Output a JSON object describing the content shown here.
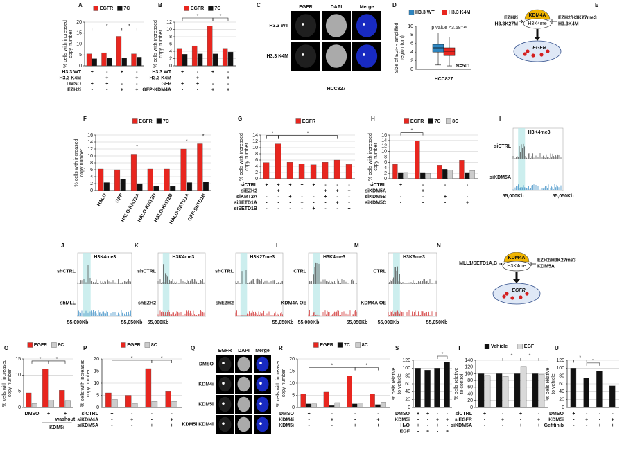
{
  "chart_data": [
    {
      "type": "bar",
      "label": "A",
      "ylabel": [
        "% cells with increased",
        "copy number"
      ],
      "ylim": [
        0,
        20
      ],
      "yticks": [
        0,
        5,
        10,
        15,
        20
      ],
      "grid": true,
      "series": [
        {
          "name": "EGFR",
          "color": "#e8261f",
          "values": [
            5.5,
            6,
            13.5,
            5.5
          ]
        },
        {
          "name": "7C",
          "color": "#111111",
          "values": [
            3.3,
            3.5,
            3.5,
            4
          ]
        }
      ],
      "rows": [
        {
          "label": "H3.3 WT",
          "marks": [
            "+",
            "-",
            "+",
            "-"
          ]
        },
        {
          "label": "H3.3 K4M",
          "marks": [
            "-",
            "+",
            "-",
            "+"
          ]
        },
        {
          "label": "DMSO",
          "marks": [
            "+",
            "+",
            "-",
            "-"
          ]
        },
        {
          "label": "EZH2i",
          "marks": [
            "-",
            "-",
            "+",
            "+"
          ]
        }
      ],
      "significance": [
        "*",
        "*"
      ]
    },
    {
      "type": "bar",
      "label": "B",
      "ylabel": [
        "% cells with increased",
        "copy number"
      ],
      "ylim": [
        0,
        12
      ],
      "yticks": [
        0,
        2,
        4,
        6,
        8,
        10,
        12
      ],
      "grid": true,
      "series": [
        {
          "name": "EGFR",
          "color": "#e8261f",
          "values": [
            4.8,
            5.5,
            11,
            4.8
          ]
        },
        {
          "name": "7C",
          "color": "#111111",
          "values": [
            3.2,
            3.3,
            3.3,
            3.8
          ]
        }
      ],
      "rows": [
        {
          "label": "H3.3 WT",
          "marks": [
            "+",
            "-",
            "+",
            "-"
          ]
        },
        {
          "label": "H3.3 K4M",
          "marks": [
            "-",
            "+",
            "-",
            "+"
          ]
        },
        {
          "label": "GFP",
          "marks": [
            "+",
            "+",
            "-",
            "-"
          ]
        },
        {
          "label": "GFP-KDM4A",
          "marks": [
            "-",
            "-",
            "+",
            "+"
          ]
        }
      ],
      "significance": [
        "*",
        "*"
      ]
    },
    {
      "type": "box",
      "label": "D",
      "ylabel": [
        "Size of EGFR amplified",
        "region (um)"
      ],
      "ylim": [
        0,
        10
      ],
      "yticks": [
        0,
        2,
        4,
        6,
        8,
        10
      ],
      "grid": false,
      "series": [
        {
          "name": "H3.3 WT",
          "color": "#2e86c1",
          "values": [
            1,
            4,
            5,
            5.8,
            8.5
          ]
        },
        {
          "name": "H3.3 K4M",
          "color": "#e8261f",
          "values": [
            0.8,
            3.2,
            4.2,
            5,
            7.5
          ]
        }
      ],
      "annotation": "p value <3.58⁻¹⁶",
      "n_label": "N=501",
      "xlabel": "HCC827"
    },
    {
      "type": "bar",
      "label": "F",
      "ylabel": [
        "% cells with increased",
        "copy number"
      ],
      "ylim": [
        0,
        16
      ],
      "yticks": [
        0,
        2,
        4,
        6,
        8,
        10,
        12,
        14,
        16
      ],
      "grid": true,
      "categories": [
        "HALO",
        "GFP",
        "HALO-KMT2A",
        "HALO-KMT2D",
        "HALO-KMT2B",
        "HALO-SETD1A",
        "GFP-SETD1B"
      ],
      "series": [
        {
          "name": "EGFR",
          "color": "#e8261f",
          "values": [
            6.2,
            6,
            10.5,
            6.2,
            6.2,
            12,
            13.5
          ]
        },
        {
          "name": "7C",
          "color": "#111111",
          "values": [
            2.3,
            3.3,
            2,
            1.2,
            1.2,
            2.3,
            2.5
          ]
        }
      ],
      "significance": [
        "*",
        "*",
        "*"
      ]
    },
    {
      "type": "bar",
      "label": "G",
      "ylabel": [
        "% cells with increased",
        "copy number"
      ],
      "ylim": [
        0,
        14
      ],
      "yticks": [
        0,
        2,
        4,
        6,
        8,
        10,
        12,
        14
      ],
      "grid": true,
      "series": [
        {
          "name": "EGFR",
          "color": "#e8261f",
          "values": [
            5.2,
            11.2,
            5.3,
            4.8,
            4.5,
            5.3,
            6,
            4.6
          ]
        }
      ],
      "rows": [
        {
          "label": "siCTRL",
          "marks": [
            "+",
            "+",
            "+",
            "+",
            "+",
            "-",
            "-",
            "-"
          ]
        },
        {
          "label": "siEZH2",
          "marks": [
            "-",
            "+",
            "-",
            "-",
            "-",
            "+",
            "+",
            "+"
          ]
        },
        {
          "label": "siKMT2A",
          "marks": [
            "-",
            "-",
            "+",
            "-",
            "-",
            "+",
            "-",
            "-"
          ]
        },
        {
          "label": "siSETD1A",
          "marks": [
            "-",
            "-",
            "-",
            "+",
            "-",
            "-",
            "+",
            "-"
          ]
        },
        {
          "label": "siSETD1B",
          "marks": [
            "-",
            "-",
            "-",
            "-",
            "+",
            "-",
            "-",
            "+"
          ]
        }
      ],
      "significance": [
        "*",
        "*"
      ]
    },
    {
      "type": "bar",
      "label": "H",
      "ylabel": [
        "% cells with increased",
        "copy number"
      ],
      "ylim": [
        0,
        16
      ],
      "yticks": [
        0,
        2,
        4,
        6,
        8,
        10,
        12,
        14,
        16
      ],
      "grid": true,
      "series": [
        {
          "name": "EGFR",
          "color": "#e8261f",
          "values": [
            5.3,
            13.8,
            5,
            6.8
          ]
        },
        {
          "name": "7C",
          "color": "#111111",
          "values": [
            2.3,
            2.3,
            3.5,
            2.3
          ]
        },
        {
          "name": "8C",
          "color": "#cccccc",
          "values": [
            2.3,
            2,
            3.2,
            3
          ]
        }
      ],
      "rows": [
        {
          "label": "siCTRL",
          "marks": [
            "+",
            "-",
            "-",
            "-"
          ]
        },
        {
          "label": "siKDM5A",
          "marks": [
            "-",
            "+",
            "-",
            "-"
          ]
        },
        {
          "label": "siKDM5B",
          "marks": [
            "-",
            "-",
            "+",
            "-"
          ]
        },
        {
          "label": "siKDM5C",
          "marks": [
            "-",
            "-",
            "-",
            "+"
          ]
        }
      ],
      "significance": [
        "*"
      ]
    },
    {
      "type": "bar",
      "label": "O",
      "ylabel": [
        "% cells with increased",
        "copy number"
      ],
      "ylim": [
        0,
        15
      ],
      "yticks": [
        0,
        5,
        10,
        15
      ],
      "grid": true,
      "categories": [
        "DMSO",
        "+",
        "+"
      ],
      "annotation": "washout",
      "xlabel": "KDM5i",
      "series": [
        {
          "name": "EGFR",
          "color": "#e8261f",
          "values": [
            4.5,
            11.8,
            5.3
          ]
        },
        {
          "name": "8C",
          "color": "#cccccc",
          "values": [
            1.2,
            2.3,
            2
          ]
        }
      ],
      "significance": [
        "*",
        "*"
      ]
    },
    {
      "type": "bar",
      "label": "P",
      "ylabel": [
        "% cells with increased",
        "copy number"
      ],
      "ylim": [
        0,
        20
      ],
      "yticks": [
        0,
        5,
        10,
        15,
        20
      ],
      "grid": true,
      "series": [
        {
          "name": "EGFR",
          "color": "#e8261f",
          "values": [
            6,
            5,
            16,
            6.5
          ]
        },
        {
          "name": "8C",
          "color": "#cccccc",
          "values": [
            3.3,
            1.7,
            2.5,
            2.5
          ]
        }
      ],
      "rows": [
        {
          "label": "siCTRL",
          "marks": [
            "+",
            "-",
            "-",
            "-"
          ]
        },
        {
          "label": "siKDM4A",
          "marks": [
            "-",
            "+",
            "-",
            "+"
          ]
        },
        {
          "label": "siKDM5A",
          "marks": [
            "-",
            "-",
            "+",
            "+"
          ]
        }
      ],
      "significance": [
        "*",
        "*"
      ]
    },
    {
      "type": "bar",
      "label": "R",
      "ylabel": [
        "% cells with increased",
        "copy number"
      ],
      "ylim": [
        0,
        20
      ],
      "yticks": [
        0,
        5,
        10,
        15,
        20
      ],
      "grid": true,
      "series": [
        {
          "name": "EGFR",
          "color": "#e8261f",
          "values": [
            5.5,
            6.3,
            13,
            5.5
          ]
        },
        {
          "name": "7C",
          "color": "#111111",
          "values": [
            1.5,
            0.8,
            1.5,
            1.2
          ]
        },
        {
          "name": "8C",
          "color": "#cccccc",
          "values": [
            1.5,
            2,
            1.8,
            2.2
          ]
        }
      ],
      "rows": [
        {
          "label": "DMSO",
          "marks": [
            "+",
            "-",
            "-",
            "-"
          ]
        },
        {
          "label": "KDM4i",
          "marks": [
            "-",
            "+",
            "-",
            "+"
          ]
        },
        {
          "label": "KDM5i",
          "marks": [
            "-",
            "-",
            "+",
            "+"
          ]
        }
      ],
      "significance": [
        "*",
        "*"
      ]
    },
    {
      "type": "bar",
      "label": "S",
      "ylabel": [
        "% cells relative",
        "to vehicle"
      ],
      "ylim": [
        0,
        120
      ],
      "yticks": [
        0,
        20,
        40,
        60,
        80,
        100,
        120
      ],
      "grid": true,
      "series": [
        {
          "name": "Vehicle",
          "color": "#111111",
          "values": [
            100,
            95,
            100,
            115
          ]
        }
      ],
      "legend": false,
      "rows": [
        {
          "label": "DMSO",
          "marks": [
            "+",
            "+",
            "-",
            "-"
          ]
        },
        {
          "label": "KDM5i",
          "marks": [
            "-",
            "-",
            "+",
            "+"
          ]
        },
        {
          "label": "H₂O",
          "marks": [
            "+",
            "-",
            "+",
            "-"
          ]
        },
        {
          "label": "EGF",
          "marks": [
            "-",
            "+",
            "-",
            "+"
          ]
        }
      ],
      "significance": [
        "*"
      ]
    },
    {
      "type": "bar",
      "label": "T",
      "ylabel": [
        "% cells relative",
        "to control"
      ],
      "ylim": [
        0,
        140
      ],
      "yticks": [
        0,
        20,
        40,
        60,
        80,
        100,
        120,
        140
      ],
      "grid": true,
      "series": [
        {
          "name": "Vehicle",
          "color": "#111111",
          "values": [
            100,
            100,
            100,
            100
          ]
        },
        {
          "name": "EGF",
          "color": "#d9d9d9",
          "values": [
            95,
            92,
            122,
            98
          ]
        }
      ],
      "rows": [
        {
          "label": "siCTRL",
          "marks": [
            "+",
            "-",
            "+",
            "-"
          ]
        },
        {
          "label": "siEGFR",
          "marks": [
            "-",
            "+",
            "-",
            "+"
          ]
        },
        {
          "label": "siKDM5A",
          "marks": [
            "-",
            "-",
            "+",
            "+"
          ]
        }
      ],
      "significance": [
        "*",
        "*"
      ]
    },
    {
      "type": "bar",
      "label": "U",
      "ylabel": [
        "% cells relative",
        "to vehicle"
      ],
      "ylim": [
        0,
        120
      ],
      "yticks": [
        0,
        20,
        40,
        60,
        80,
        100,
        120
      ],
      "grid": true,
      "series": [
        {
          "name": "Vehicle",
          "color": "#111111",
          "values": [
            100,
            75,
            92,
            55
          ]
        }
      ],
      "legend": false,
      "rows": [
        {
          "label": "DMSO",
          "marks": [
            "+",
            "-",
            "-",
            "-"
          ]
        },
        {
          "label": "KDM5i",
          "marks": [
            "-",
            "+",
            "-",
            "+"
          ]
        },
        {
          "label": "Gefitinib",
          "marks": [
            "-",
            "-",
            "+",
            "+"
          ]
        }
      ],
      "significance": [
        "*",
        "*"
      ]
    }
  ],
  "panels": {
    "C": {
      "label": "C",
      "columns": [
        "EGFR",
        "DAPI",
        "Merge"
      ],
      "rows": [
        "H3.3 WT",
        "H3.3 K4M"
      ],
      "caption": "HCC827"
    },
    "Q": {
      "label": "Q",
      "columns": [
        "EGFR",
        "DAPI",
        "Merge"
      ],
      "rows": [
        "DMSO",
        "KDM4i",
        "KDM5i",
        "KDM5i KDM4i"
      ]
    },
    "E": {
      "label": "E",
      "enzyme": "KDM4A",
      "mark": "H3K4me",
      "left": [
        "EZH2i",
        "H3.3K27M"
      ],
      "right": [
        "EZH2/H3K27me3",
        "H3.3K4M"
      ],
      "gene": "EGFR"
    },
    "N": {
      "label": "N",
      "enzyme": "KDM4A",
      "mark": "H3K4me",
      "left": [
        "MLL1/SETD1A,B"
      ],
      "right": [
        "EZH2/H3K27me3",
        "KDM5A"
      ],
      "gene": "EGFR"
    },
    "I": {
      "label": "I",
      "tracks": [
        {
          "mark": "H3K4me3",
          "samples": [
            "siCTRL",
            "siKDM5A"
          ]
        }
      ],
      "axis": [
        "55,000Kb",
        "55,050Kb"
      ]
    },
    "J": {
      "label": "J",
      "tracks": [
        {
          "mark": "H3K4me3",
          "samples": [
            "shCTRL",
            "shMLL"
          ]
        }
      ],
      "axis": [
        "55,000Kb",
        "55,050Kb"
      ]
    },
    "K": {
      "label": "K",
      "tracks": [
        {
          "mark": "H3K4me3",
          "samples": [
            "shCTRL",
            "shEZH2"
          ]
        },
        {
          "mark": "H3K27me3",
          "samples": [
            "shCTRL",
            "shEZH2"
          ]
        }
      ],
      "axis": [
        "55,000Kb",
        "55,050Kb"
      ]
    },
    "L": {
      "label": "L",
      "tracks": [
        {
          "mark": "H3K4me3",
          "samples": [
            "CTRL",
            "KDM4A OE"
          ]
        }
      ],
      "axis": [
        "55,000Kb",
        "55,050Kb"
      ]
    },
    "M": {
      "label": "M",
      "tracks": [
        {
          "mark": "H3K9me3",
          "samples": [
            "CTRL",
            "KDM4A OE"
          ]
        }
      ],
      "axis": [
        "55,000Kb",
        "55,050Kb"
      ]
    }
  }
}
